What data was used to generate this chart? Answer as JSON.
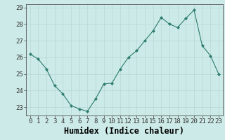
{
  "x": [
    0,
    1,
    2,
    3,
    4,
    5,
    6,
    7,
    8,
    9,
    10,
    11,
    12,
    13,
    14,
    15,
    16,
    17,
    18,
    19,
    20,
    21,
    22,
    23
  ],
  "y": [
    26.2,
    25.9,
    25.3,
    24.3,
    23.8,
    23.1,
    22.9,
    22.75,
    23.5,
    24.4,
    24.45,
    25.3,
    26.0,
    26.4,
    27.0,
    27.6,
    28.4,
    28.0,
    27.8,
    28.35,
    28.85,
    26.7,
    26.1,
    25.0
  ],
  "xlabel": "Humidex (Indice chaleur)",
  "ylim": [
    22.5,
    29.2
  ],
  "xlim": [
    -0.5,
    23.5
  ],
  "yticks": [
    23,
    24,
    25,
    26,
    27,
    28,
    29
  ],
  "xticks": [
    0,
    1,
    2,
    3,
    4,
    5,
    6,
    7,
    8,
    9,
    10,
    11,
    12,
    13,
    14,
    15,
    16,
    17,
    18,
    19,
    20,
    21,
    22,
    23
  ],
  "line_color": "#2e7d6e",
  "marker_color": "#2e7d6e",
  "bg_color": "#cceae7",
  "grid_color": "#b8d8d5",
  "tick_label_fontsize": 6.5,
  "xlabel_fontsize": 8.5
}
